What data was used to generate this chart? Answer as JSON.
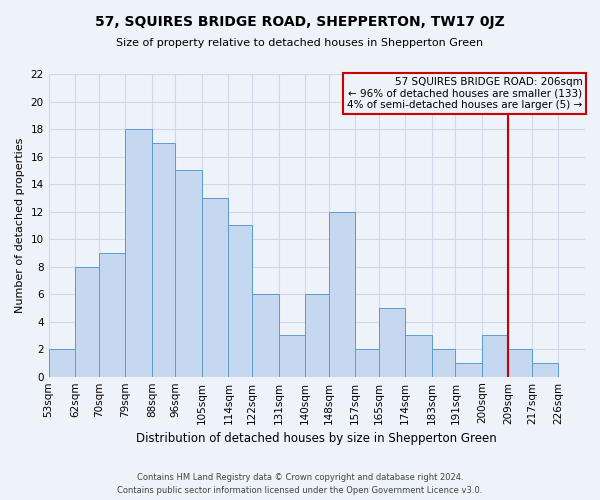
{
  "title": "57, SQUIRES BRIDGE ROAD, SHEPPERTON, TW17 0JZ",
  "subtitle": "Size of property relative to detached houses in Shepperton Green",
  "xlabel": "Distribution of detached houses by size in Shepperton Green",
  "ylabel": "Number of detached properties",
  "footer_line1": "Contains HM Land Registry data © Crown copyright and database right 2024.",
  "footer_line2": "Contains public sector information licensed under the Open Government Licence v3.0.",
  "bin_labels": [
    "53sqm",
    "62sqm",
    "70sqm",
    "79sqm",
    "88sqm",
    "96sqm",
    "105sqm",
    "114sqm",
    "122sqm",
    "131sqm",
    "140sqm",
    "148sqm",
    "157sqm",
    "165sqm",
    "174sqm",
    "183sqm",
    "191sqm",
    "200sqm",
    "209sqm",
    "217sqm",
    "226sqm"
  ],
  "bar_values": [
    2,
    8,
    9,
    18,
    17,
    15,
    13,
    11,
    6,
    3,
    6,
    12,
    2,
    5,
    3,
    2,
    1,
    3,
    2,
    1,
    0
  ],
  "bar_color": "#c5d8f0",
  "bar_edge_color": "#5b9bd5",
  "grid_color": "#d0d8e8",
  "property_line_color": "#cc0000",
  "annotation_box_color": "#cc0000",
  "annotation_line1": "57 SQUIRES BRIDGE ROAD: 206sqm",
  "annotation_line2": "← 96% of detached houses are smaller (133)",
  "annotation_line3": "4% of semi-detached houses are larger (5) →",
  "ylim": [
    0,
    22
  ],
  "yticks": [
    0,
    2,
    4,
    6,
    8,
    10,
    12,
    14,
    16,
    18,
    20,
    22
  ],
  "bin_edges": [
    53,
    62,
    70,
    79,
    88,
    96,
    105,
    114,
    122,
    131,
    140,
    148,
    157,
    165,
    174,
    183,
    191,
    200,
    209,
    217,
    226,
    235
  ],
  "bg_color": "#eef2f9",
  "vline_x_bin_index": 18,
  "title_fontsize": 10,
  "subtitle_fontsize": 8,
  "ylabel_fontsize": 8,
  "xlabel_fontsize": 8.5,
  "tick_fontsize": 7.5,
  "annot_fontsize": 7.5,
  "footer_fontsize": 6
}
